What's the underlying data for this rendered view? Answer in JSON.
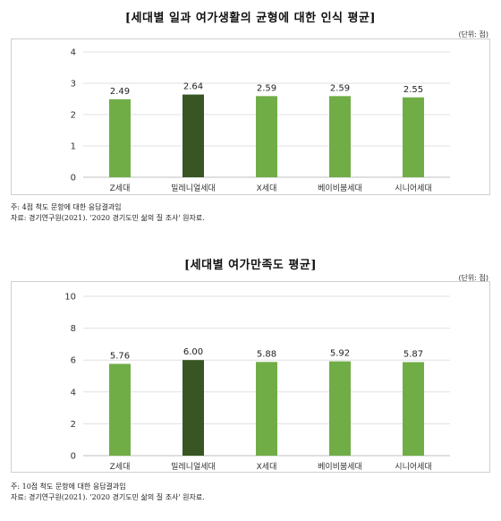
{
  "chart_data": [
    {
      "type": "bar",
      "title": "[세대별 일과 여가생활의 균형에 대한 인식 평균]",
      "unit_label": "(단위: 점)",
      "categories": [
        "Z세대",
        "밀레니얼세대",
        "X세대",
        "베이비붐세대",
        "시니어세대"
      ],
      "values": [
        2.49,
        2.64,
        2.59,
        2.59,
        2.55
      ],
      "value_labels": [
        "2.49",
        "2.64",
        "2.59",
        "2.59",
        "2.55"
      ],
      "ylim": [
        0,
        4
      ],
      "yticks": [
        "0",
        "1",
        "2",
        "3",
        "4"
      ],
      "ytick_values": [
        0,
        1,
        2,
        3,
        4
      ],
      "grid": true,
      "highlight_index": 1,
      "bar_color": "#70ad47",
      "highlight_color": "#375623",
      "notes": [
        "주: 4점 척도 문항에 대한 응답결과임",
        "자료: 경기연구원(2021). '2020 경기도민 삶의 질 조사' 원자료."
      ]
    },
    {
      "type": "bar",
      "title": "[세대별 여가만족도 평균]",
      "unit_label": "(단위: 점)",
      "categories": [
        "Z세대",
        "밀레니얼세대",
        "X세대",
        "베이비붐세대",
        "시니어세대"
      ],
      "values": [
        5.76,
        6.0,
        5.88,
        5.92,
        5.87
      ],
      "value_labels": [
        "5.76",
        "6.00",
        "5.88",
        "5.92",
        "5.87"
      ],
      "ylim": [
        0,
        10
      ],
      "yticks": [
        "0",
        "2",
        "4",
        "6",
        "8",
        "10"
      ],
      "ytick_values": [
        0,
        2,
        4,
        6,
        8,
        10
      ],
      "grid": true,
      "highlight_index": 1,
      "bar_color": "#70ad47",
      "highlight_color": "#375623",
      "notes": [
        "주: 10점 척도 문항에 대한 응답결과임",
        "자료: 경기연구원(2021). '2020 경기도민 삶의 질 조사' 원자료."
      ]
    }
  ]
}
